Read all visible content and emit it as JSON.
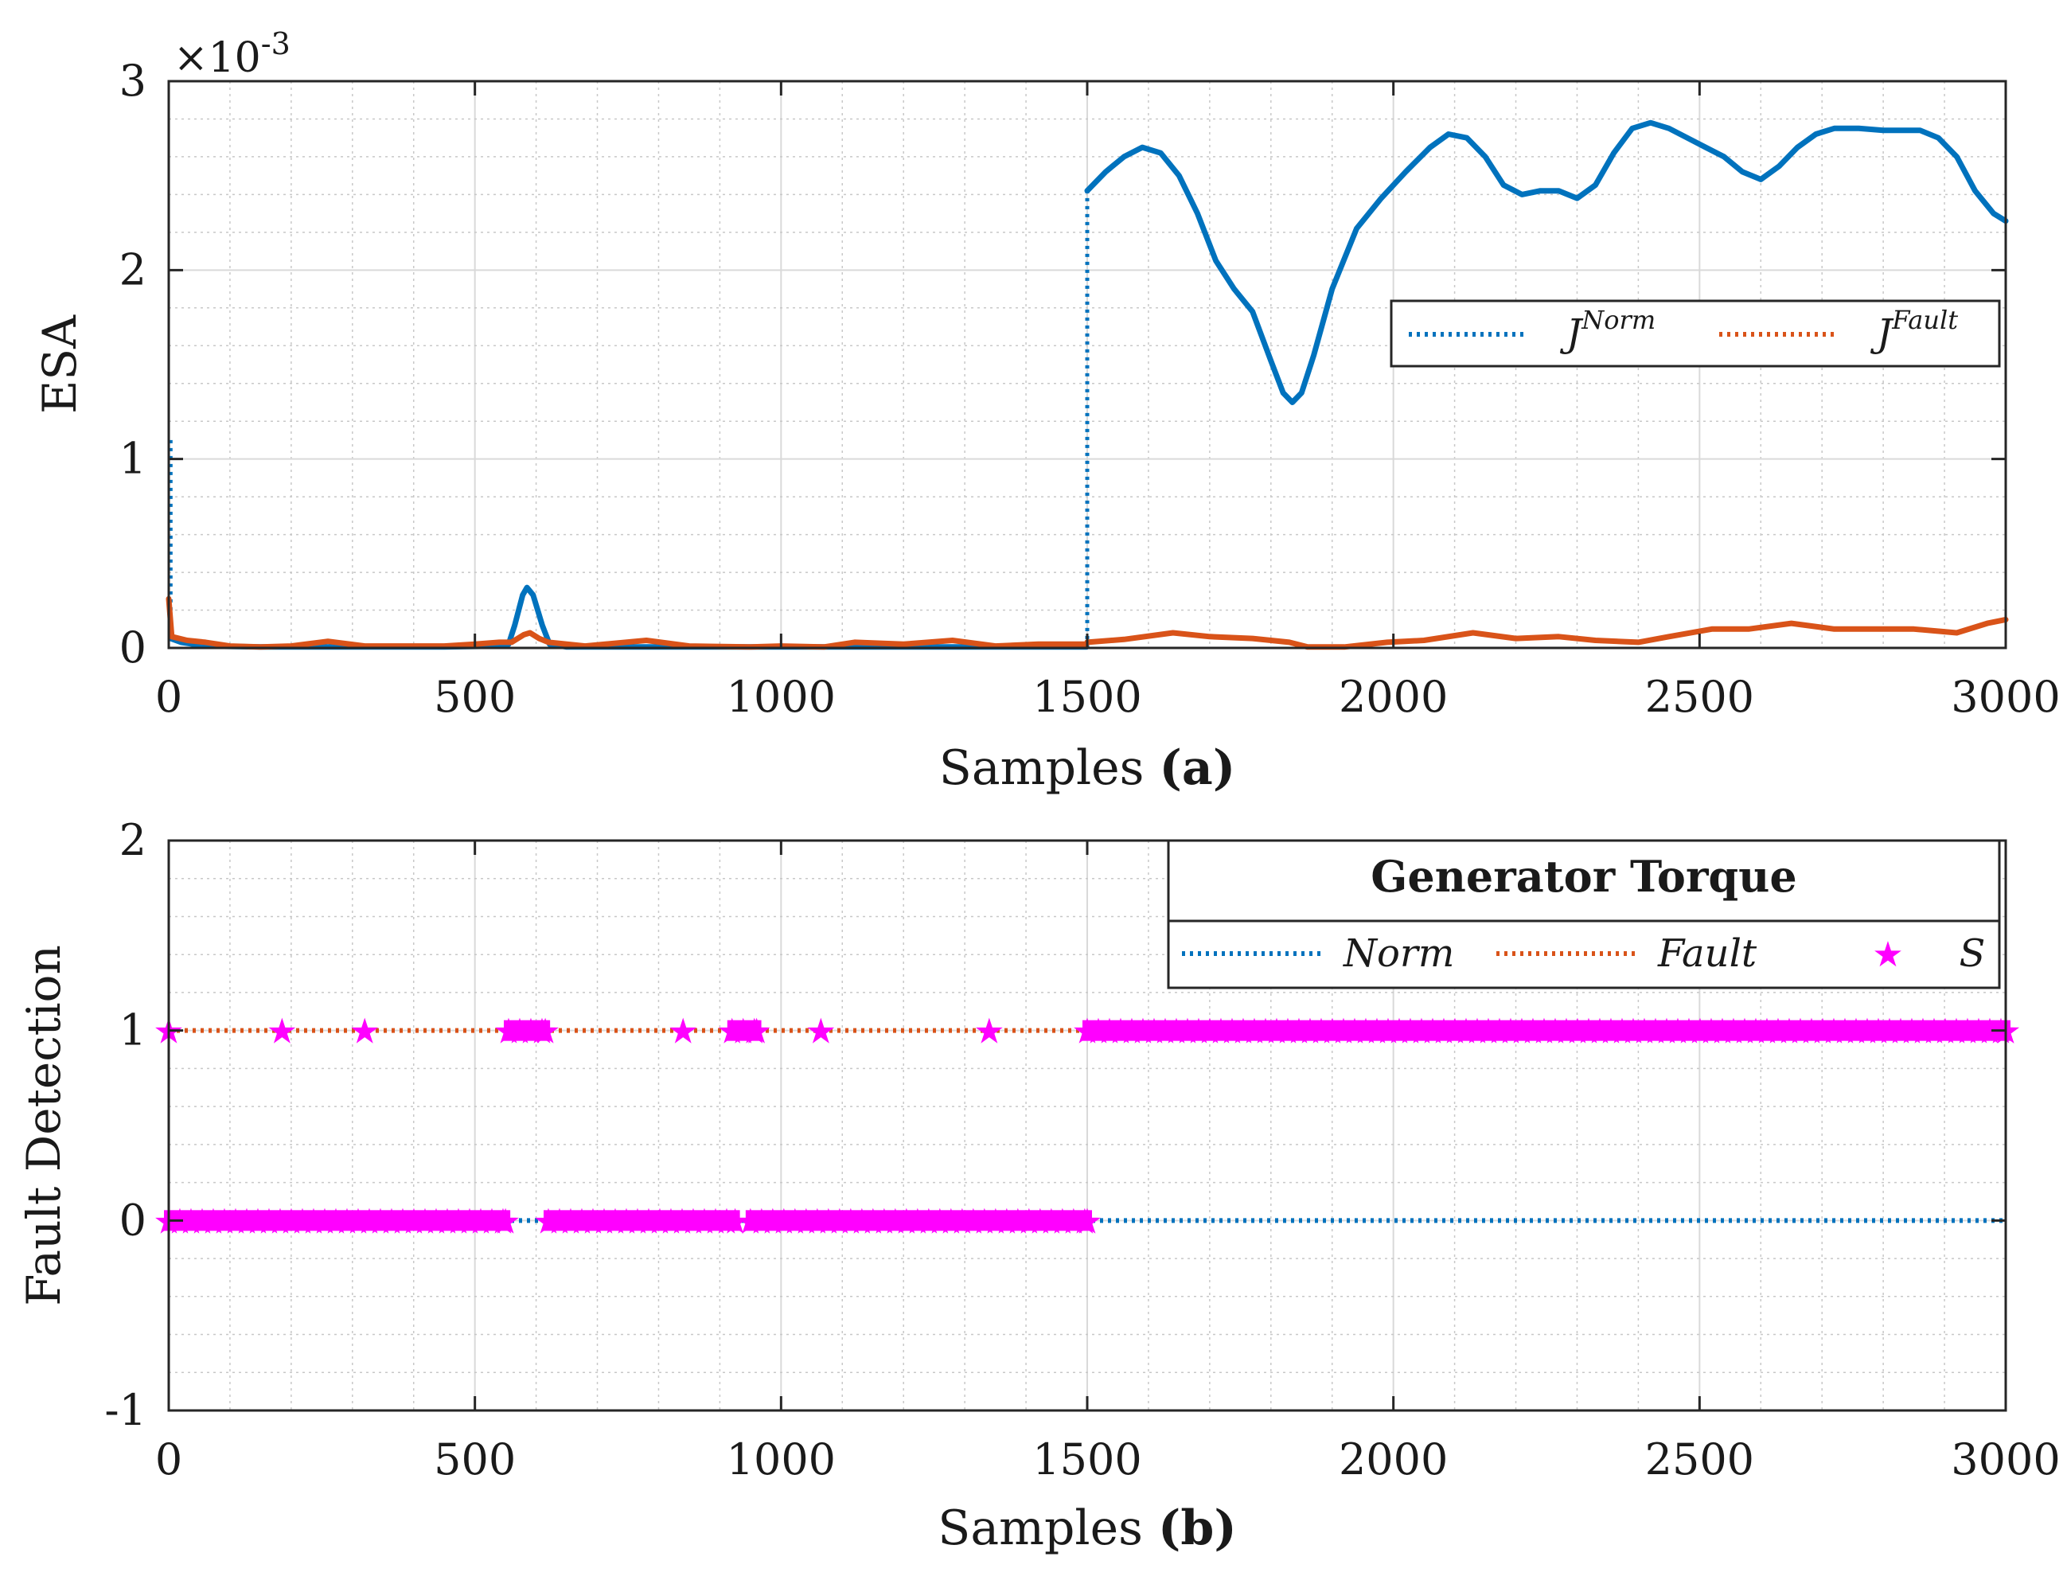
{
  "colors": {
    "norm": "#0072BD",
    "fault": "#D95319",
    "s": "#FF00FF",
    "axis": "#262626",
    "grid_major": "#d9d9d9",
    "grid_minor": "#c8c8c8"
  },
  "chart_data": [
    {
      "type": "line",
      "title": "",
      "xlabel_text": "Samples ",
      "xlabel_bold": "(a)",
      "ylabel": "ESA",
      "exponent_base": "×10",
      "exponent_power": "-3",
      "xlim": [
        0,
        3000
      ],
      "ylim": [
        0,
        3
      ],
      "x_ticks": [
        0,
        500,
        1000,
        1500,
        2000,
        2500,
        3000
      ],
      "y_ticks": [
        0,
        1,
        2,
        3
      ],
      "x_tick_labels": [
        "0",
        "500",
        "1000",
        "1500",
        "2000",
        "2500",
        "3000"
      ],
      "y_tick_labels": [
        "0",
        "1",
        "2",
        "3"
      ],
      "grid": true,
      "legend_position": "upper-right",
      "legend": [
        {
          "base": "J",
          "sup": "Norm"
        },
        {
          "base": "J",
          "sup": "Fault"
        }
      ],
      "series": [
        {
          "name": "J^Norm",
          "style": "solid-with-dotted-jumps",
          "points": [
            [
              0,
              1.1
            ],
            [
              3,
              0.05
            ],
            [
              20,
              0.03
            ],
            [
              60,
              0.01
            ],
            [
              150,
              0.005
            ],
            [
              300,
              0.005
            ],
            [
              450,
              0.005
            ],
            [
              540,
              0.01
            ],
            [
              555,
              0.02
            ],
            [
              565,
              0.12
            ],
            [
              578,
              0.28
            ],
            [
              585,
              0.32
            ],
            [
              595,
              0.28
            ],
            [
              610,
              0.12
            ],
            [
              622,
              0.02
            ],
            [
              650,
              0.005
            ],
            [
              800,
              0.005
            ],
            [
              1000,
              0.005
            ],
            [
              1200,
              0.005
            ],
            [
              1400,
              0.005
            ],
            [
              1499,
              0.005
            ],
            [
              1500,
              2.42
            ],
            [
              1530,
              2.52
            ],
            [
              1560,
              2.6
            ],
            [
              1590,
              2.65
            ],
            [
              1620,
              2.62
            ],
            [
              1650,
              2.5
            ],
            [
              1680,
              2.3
            ],
            [
              1710,
              2.05
            ],
            [
              1740,
              1.9
            ],
            [
              1770,
              1.78
            ],
            [
              1800,
              1.52
            ],
            [
              1820,
              1.35
            ],
            [
              1835,
              1.3
            ],
            [
              1850,
              1.35
            ],
            [
              1870,
              1.55
            ],
            [
              1900,
              1.9
            ],
            [
              1940,
              2.22
            ],
            [
              1980,
              2.38
            ],
            [
              2020,
              2.52
            ],
            [
              2060,
              2.65
            ],
            [
              2090,
              2.72
            ],
            [
              2120,
              2.7
            ],
            [
              2150,
              2.6
            ],
            [
              2180,
              2.45
            ],
            [
              2210,
              2.4
            ],
            [
              2240,
              2.42
            ],
            [
              2270,
              2.42
            ],
            [
              2300,
              2.38
            ],
            [
              2330,
              2.45
            ],
            [
              2360,
              2.62
            ],
            [
              2390,
              2.75
            ],
            [
              2420,
              2.78
            ],
            [
              2450,
              2.75
            ],
            [
              2480,
              2.7
            ],
            [
              2510,
              2.65
            ],
            [
              2540,
              2.6
            ],
            [
              2570,
              2.52
            ],
            [
              2600,
              2.48
            ],
            [
              2630,
              2.55
            ],
            [
              2660,
              2.65
            ],
            [
              2690,
              2.72
            ],
            [
              2720,
              2.75
            ],
            [
              2760,
              2.75
            ],
            [
              2800,
              2.74
            ],
            [
              2830,
              2.74
            ],
            [
              2860,
              2.74
            ],
            [
              2890,
              2.7
            ],
            [
              2920,
              2.6
            ],
            [
              2950,
              2.42
            ],
            [
              2980,
              2.3
            ],
            [
              3000,
              2.26
            ]
          ]
        },
        {
          "name": "J^Fault",
          "style": "solid",
          "points": [
            [
              0,
              0.26
            ],
            [
              5,
              0.06
            ],
            [
              30,
              0.04
            ],
            [
              60,
              0.03
            ],
            [
              100,
              0.01
            ],
            [
              150,
              0.005
            ],
            [
              200,
              0.01
            ],
            [
              260,
              0.035
            ],
            [
              320,
              0.01
            ],
            [
              400,
              0.01
            ],
            [
              450,
              0.01
            ],
            [
              500,
              0.02
            ],
            [
              540,
              0.03
            ],
            [
              560,
              0.03
            ],
            [
              580,
              0.07
            ],
            [
              590,
              0.08
            ],
            [
              605,
              0.05
            ],
            [
              620,
              0.03
            ],
            [
              680,
              0.01
            ],
            [
              780,
              0.04
            ],
            [
              850,
              0.01
            ],
            [
              950,
              0.005
            ],
            [
              1000,
              0.01
            ],
            [
              1070,
              0.005
            ],
            [
              1120,
              0.03
            ],
            [
              1200,
              0.02
            ],
            [
              1280,
              0.04
            ],
            [
              1350,
              0.01
            ],
            [
              1420,
              0.02
            ],
            [
              1499,
              0.02
            ],
            [
              1500,
              0.03
            ],
            [
              1560,
              0.045
            ],
            [
              1640,
              0.08
            ],
            [
              1700,
              0.06
            ],
            [
              1770,
              0.05
            ],
            [
              1830,
              0.03
            ],
            [
              1860,
              0.005
            ],
            [
              1920,
              0.005
            ],
            [
              1990,
              0.03
            ],
            [
              2050,
              0.04
            ],
            [
              2130,
              0.08
            ],
            [
              2200,
              0.05
            ],
            [
              2270,
              0.06
            ],
            [
              2330,
              0.04
            ],
            [
              2400,
              0.03
            ],
            [
              2450,
              0.06
            ],
            [
              2520,
              0.1
            ],
            [
              2580,
              0.1
            ],
            [
              2650,
              0.13
            ],
            [
              2720,
              0.1
            ],
            [
              2780,
              0.1
            ],
            [
              2850,
              0.1
            ],
            [
              2920,
              0.08
            ],
            [
              2970,
              0.13
            ],
            [
              3000,
              0.15
            ]
          ]
        }
      ]
    },
    {
      "type": "scatter",
      "title": "",
      "xlabel_text": "Samples ",
      "xlabel_bold": "(b)",
      "ylabel": "Fault Detection",
      "xlim": [
        0,
        3000
      ],
      "ylim": [
        -1,
        2
      ],
      "x_ticks": [
        0,
        500,
        1000,
        1500,
        2000,
        2500,
        3000
      ],
      "y_ticks": [
        -1,
        0,
        1,
        2
      ],
      "x_tick_labels": [
        "0",
        "500",
        "1000",
        "1500",
        "2000",
        "2500",
        "3000"
      ],
      "y_tick_labels": [
        "-1",
        "0",
        "1",
        "2"
      ],
      "grid": true,
      "legend_position": "top-right",
      "legend_title": "Generator Torque",
      "legend": [
        "Norm",
        "Fault",
        "S"
      ],
      "series": [
        {
          "name": "Norm",
          "style": "dotted",
          "points": [
            [
              0,
              0
            ],
            [
              3000,
              0
            ]
          ]
        },
        {
          "name": "Fault",
          "style": "dotted",
          "points": [
            [
              0,
              1
            ],
            [
              1500,
              1
            ]
          ]
        },
        {
          "name": "S",
          "marker": "star",
          "value_1_samples": [
            0,
            185,
            320,
            840,
            1065,
            1340,
            3000
          ],
          "value_1_ranges": [
            [
              555,
              615
            ],
            [
              920,
              960
            ],
            [
              1500,
              3000
            ]
          ],
          "value_0_ranges": [
            [
              0,
              550
            ],
            [
              620,
              925
            ],
            [
              950,
              1500
            ]
          ]
        }
      ]
    }
  ]
}
